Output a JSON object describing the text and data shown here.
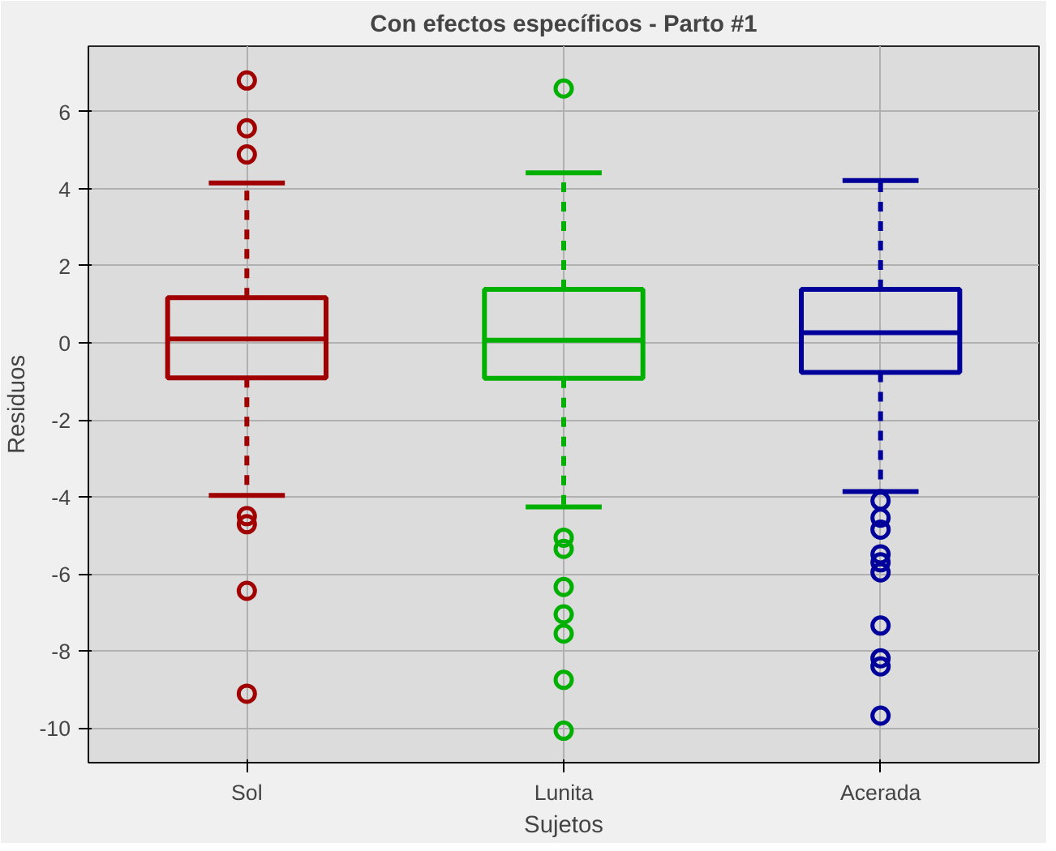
{
  "chart_data": {
    "type": "box",
    "title": "Con efectos específicos - Parto #1",
    "xlabel": "Sujetos",
    "ylabel": "Residuos",
    "categories": [
      "Sol",
      "Lunita",
      "Acerada"
    ],
    "colors": [
      "#a00000",
      "#00b000",
      "#00009a"
    ],
    "boxes": [
      {
        "low": -3.96,
        "q1": -0.91,
        "median": 0.1,
        "q3": 1.17,
        "high": 4.15,
        "outliers": [
          6.81,
          5.57,
          4.89,
          -4.5,
          -4.71,
          -6.44,
          -9.11
        ]
      },
      {
        "low": -4.26,
        "q1": -0.92,
        "median": 0.07,
        "q3": 1.39,
        "high": 4.41,
        "outliers": [
          6.6,
          -5.06,
          -5.35,
          -6.34,
          -7.05,
          -7.55,
          -8.75,
          -10.07
        ]
      },
      {
        "low": -3.86,
        "q1": -0.77,
        "median": 0.26,
        "q3": 1.39,
        "high": 4.21,
        "outliers": [
          -4.1,
          -4.54,
          -4.85,
          -5.49,
          -5.7,
          -5.96,
          -7.34,
          -8.19,
          -8.4,
          -9.68
        ]
      }
    ],
    "ylim": [
      -10.9,
      7.7
    ],
    "yticks": [
      -10,
      -8,
      -6,
      -4,
      -2,
      0,
      2,
      4,
      6
    ],
    "grid": true,
    "marker": "circle",
    "line_style": "dashed"
  }
}
